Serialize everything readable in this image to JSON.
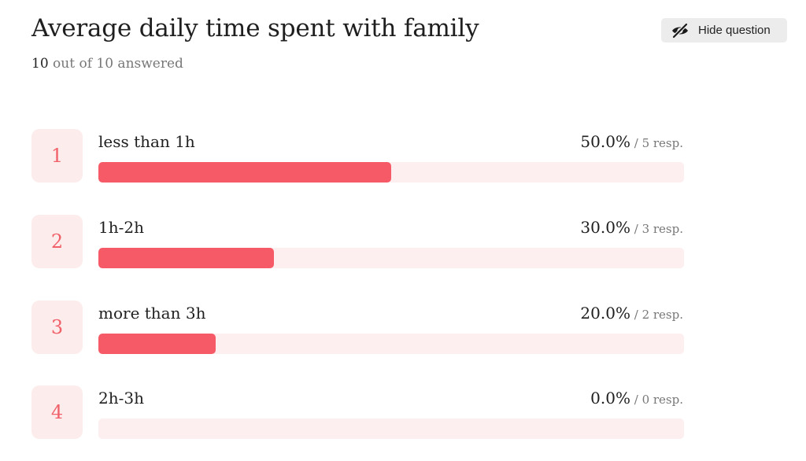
{
  "question": {
    "title": "Average daily time spent with family",
    "answered_count": "10",
    "answered_suffix": "out of 10 answered"
  },
  "hide_button": {
    "label": "Hide question",
    "icon": "eye-slash-icon"
  },
  "colors": {
    "accent": "#f55a66",
    "accent_light": "#fdeef0",
    "rank_text": "#f0616a"
  },
  "options": [
    {
      "rank": "1",
      "label": "less than 1h",
      "percent": "50.0%",
      "responses": "5 resp.",
      "fraction": 0.5
    },
    {
      "rank": "2",
      "label": "1h-2h",
      "percent": "30.0%",
      "responses": "3 resp.",
      "fraction": 0.3
    },
    {
      "rank": "3",
      "label": "more than 3h",
      "percent": "20.0%",
      "responses": "2 resp.",
      "fraction": 0.2
    },
    {
      "rank": "4",
      "label": "2h-3h",
      "percent": "0.0%",
      "responses": "0 resp.",
      "fraction": 0.0
    }
  ]
}
